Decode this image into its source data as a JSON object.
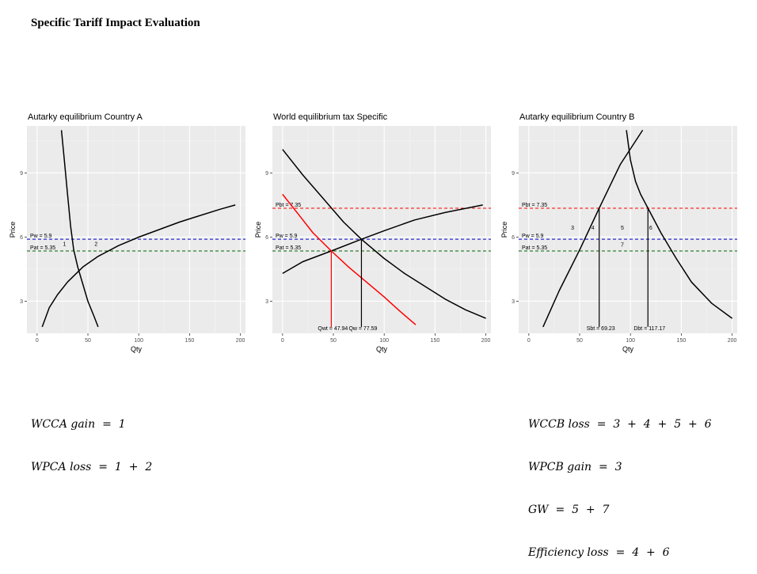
{
  "title": "Specific Tariff Impact Evaluation",
  "chart_data": [
    {
      "type": "line",
      "title": "Autarky equilibrium Country A",
      "xlabel": "Qty",
      "ylabel": "Price",
      "xlim": [
        -10,
        205
      ],
      "ylim": [
        1.5,
        11.2
      ],
      "xticks": [
        0,
        50,
        100,
        150,
        200
      ],
      "yticks": [
        3,
        6,
        9
      ],
      "grid": true,
      "curves": [
        {
          "color": "#000000",
          "points": [
            [
              24,
              11
            ],
            [
              27,
              9.5
            ],
            [
              30,
              8.0
            ],
            [
              33,
              6.5
            ],
            [
              36,
              5.4
            ],
            [
              40,
              4.6
            ],
            [
              45,
              3.8
            ],
            [
              50,
              3.0
            ],
            [
              56,
              2.3
            ],
            [
              60,
              1.8
            ]
          ]
        },
        {
          "color": "#000000",
          "points": [
            [
              5,
              1.8
            ],
            [
              12,
              2.7
            ],
            [
              20,
              3.3
            ],
            [
              30,
              3.9
            ],
            [
              45,
              4.6
            ],
            [
              60,
              5.1
            ],
            [
              80,
              5.6
            ],
            [
              100,
              6.0
            ],
            [
              120,
              6.35
            ],
            [
              140,
              6.7
            ],
            [
              160,
              7.0
            ],
            [
              180,
              7.3
            ],
            [
              195,
              7.5
            ]
          ]
        }
      ],
      "hlines": [
        {
          "y": 5.9,
          "color": "#0000cc",
          "label": "Pw = 5.9"
        },
        {
          "y": 5.35,
          "color": "#006400",
          "label": "Pat = 5.35"
        }
      ],
      "vlines": [],
      "regions": [
        {
          "label": "1",
          "x": 27,
          "y": 5.6
        },
        {
          "label": "2",
          "x": 58,
          "y": 5.6
        }
      ]
    },
    {
      "type": "line",
      "title": "World equilibrium tax Specific",
      "xlabel": "Qty",
      "ylabel": "Price",
      "xlim": [
        -10,
        205
      ],
      "ylim": [
        1.5,
        11.2
      ],
      "xticks": [
        0,
        50,
        100,
        150,
        200
      ],
      "yticks": [
        3,
        6,
        9
      ],
      "grid": true,
      "curves": [
        {
          "color": "#000000",
          "points": [
            [
              0,
              10.1
            ],
            [
              20,
              8.9
            ],
            [
              40,
              7.8
            ],
            [
              60,
              6.7
            ],
            [
              77.59,
              5.9
            ],
            [
              100,
              5.0
            ],
            [
              120,
              4.3
            ],
            [
              140,
              3.7
            ],
            [
              160,
              3.1
            ],
            [
              180,
              2.6
            ],
            [
              200,
              2.2
            ]
          ]
        },
        {
          "color": "#000000",
          "points": [
            [
              0,
              4.3
            ],
            [
              20,
              4.85
            ],
            [
              47.94,
              5.35
            ],
            [
              77.59,
              5.9
            ],
            [
              100,
              6.3
            ],
            [
              130,
              6.8
            ],
            [
              160,
              7.15
            ],
            [
              197,
              7.5
            ]
          ]
        },
        {
          "color": "#ff0000",
          "points": [
            [
              0,
              8.0
            ],
            [
              15,
              7.1
            ],
            [
              30,
              6.2
            ],
            [
              47.94,
              5.35
            ],
            [
              65,
              4.6
            ],
            [
              85,
              3.8
            ],
            [
              100,
              3.2
            ],
            [
              115,
              2.55
            ],
            [
              131,
              1.9
            ]
          ]
        }
      ],
      "hlines": [
        {
          "y": 7.35,
          "color": "#ff0000",
          "label": "Pbt = 7.35"
        },
        {
          "y": 5.9,
          "color": "#0000cc",
          "label": "Pw = 5.9"
        },
        {
          "y": 5.35,
          "color": "#006400",
          "label": "Pat = 5.35"
        }
      ],
      "vlines": [
        {
          "x": 47.94,
          "y_top": 5.35,
          "color": "#ff0000",
          "label": "Qwt = 47.94"
        },
        {
          "x": 77.59,
          "y_top": 5.9,
          "color": "#000000",
          "label": "Qw = 77.59"
        }
      ],
      "regions": []
    },
    {
      "type": "line",
      "title": "Autarky equilibrium Country B",
      "xlabel": "Qty",
      "ylabel": "Price",
      "xlim": [
        -10,
        205
      ],
      "ylim": [
        1.5,
        11.2
      ],
      "xticks": [
        0,
        50,
        100,
        150,
        200
      ],
      "yticks": [
        3,
        6,
        9
      ],
      "grid": true,
      "curves": [
        {
          "color": "#000000",
          "points": [
            [
              14,
              1.8
            ],
            [
              30,
              3.5
            ],
            [
              50,
              5.4
            ],
            [
              69.23,
              7.35
            ],
            [
              90,
              9.4
            ],
            [
              112,
              11.0
            ]
          ]
        },
        {
          "color": "#000000",
          "points": [
            [
              96,
              11.0
            ],
            [
              100,
              9.6
            ],
            [
              105,
              8.6
            ],
            [
              110,
              8.0
            ],
            [
              117.17,
              7.35
            ],
            [
              130,
              6.2
            ],
            [
              145,
              5.0
            ],
            [
              160,
              3.9
            ],
            [
              180,
              2.9
            ],
            [
              200,
              2.2
            ]
          ]
        }
      ],
      "hlines": [
        {
          "y": 7.35,
          "color": "#ff0000",
          "label": "Pbt = 7.35"
        },
        {
          "y": 5.9,
          "color": "#0000cc",
          "label": "Pw = 5.9"
        },
        {
          "y": 5.35,
          "color": "#006400",
          "label": "Pat = 5.35"
        }
      ],
      "vlines": [
        {
          "x": 69.23,
          "y_top": 7.35,
          "color": "#000000",
          "label": "Sbt = 69.23"
        },
        {
          "x": 117.17,
          "y_top": 7.35,
          "color": "#000000",
          "label": "Dbt = 117.17"
        }
      ],
      "regions": [
        {
          "label": "3",
          "x": 43,
          "y": 6.35
        },
        {
          "label": "4",
          "x": 63,
          "y": 6.35
        },
        {
          "label": "5",
          "x": 92,
          "y": 6.35
        },
        {
          "label": "6",
          "x": 120,
          "y": 6.35
        },
        {
          "label": "7",
          "x": 92,
          "y": 5.55
        }
      ]
    }
  ],
  "equations_left": [
    "WCCA gain  =  1",
    "WPCA loss  =  1  +  2"
  ],
  "equations_right": [
    "WCCB loss  =  3  +  4  +  5  +  6",
    "WPCB gain  =  3",
    "GW  =  5  +  7",
    "Efficiency loss  =  4  +  6"
  ]
}
